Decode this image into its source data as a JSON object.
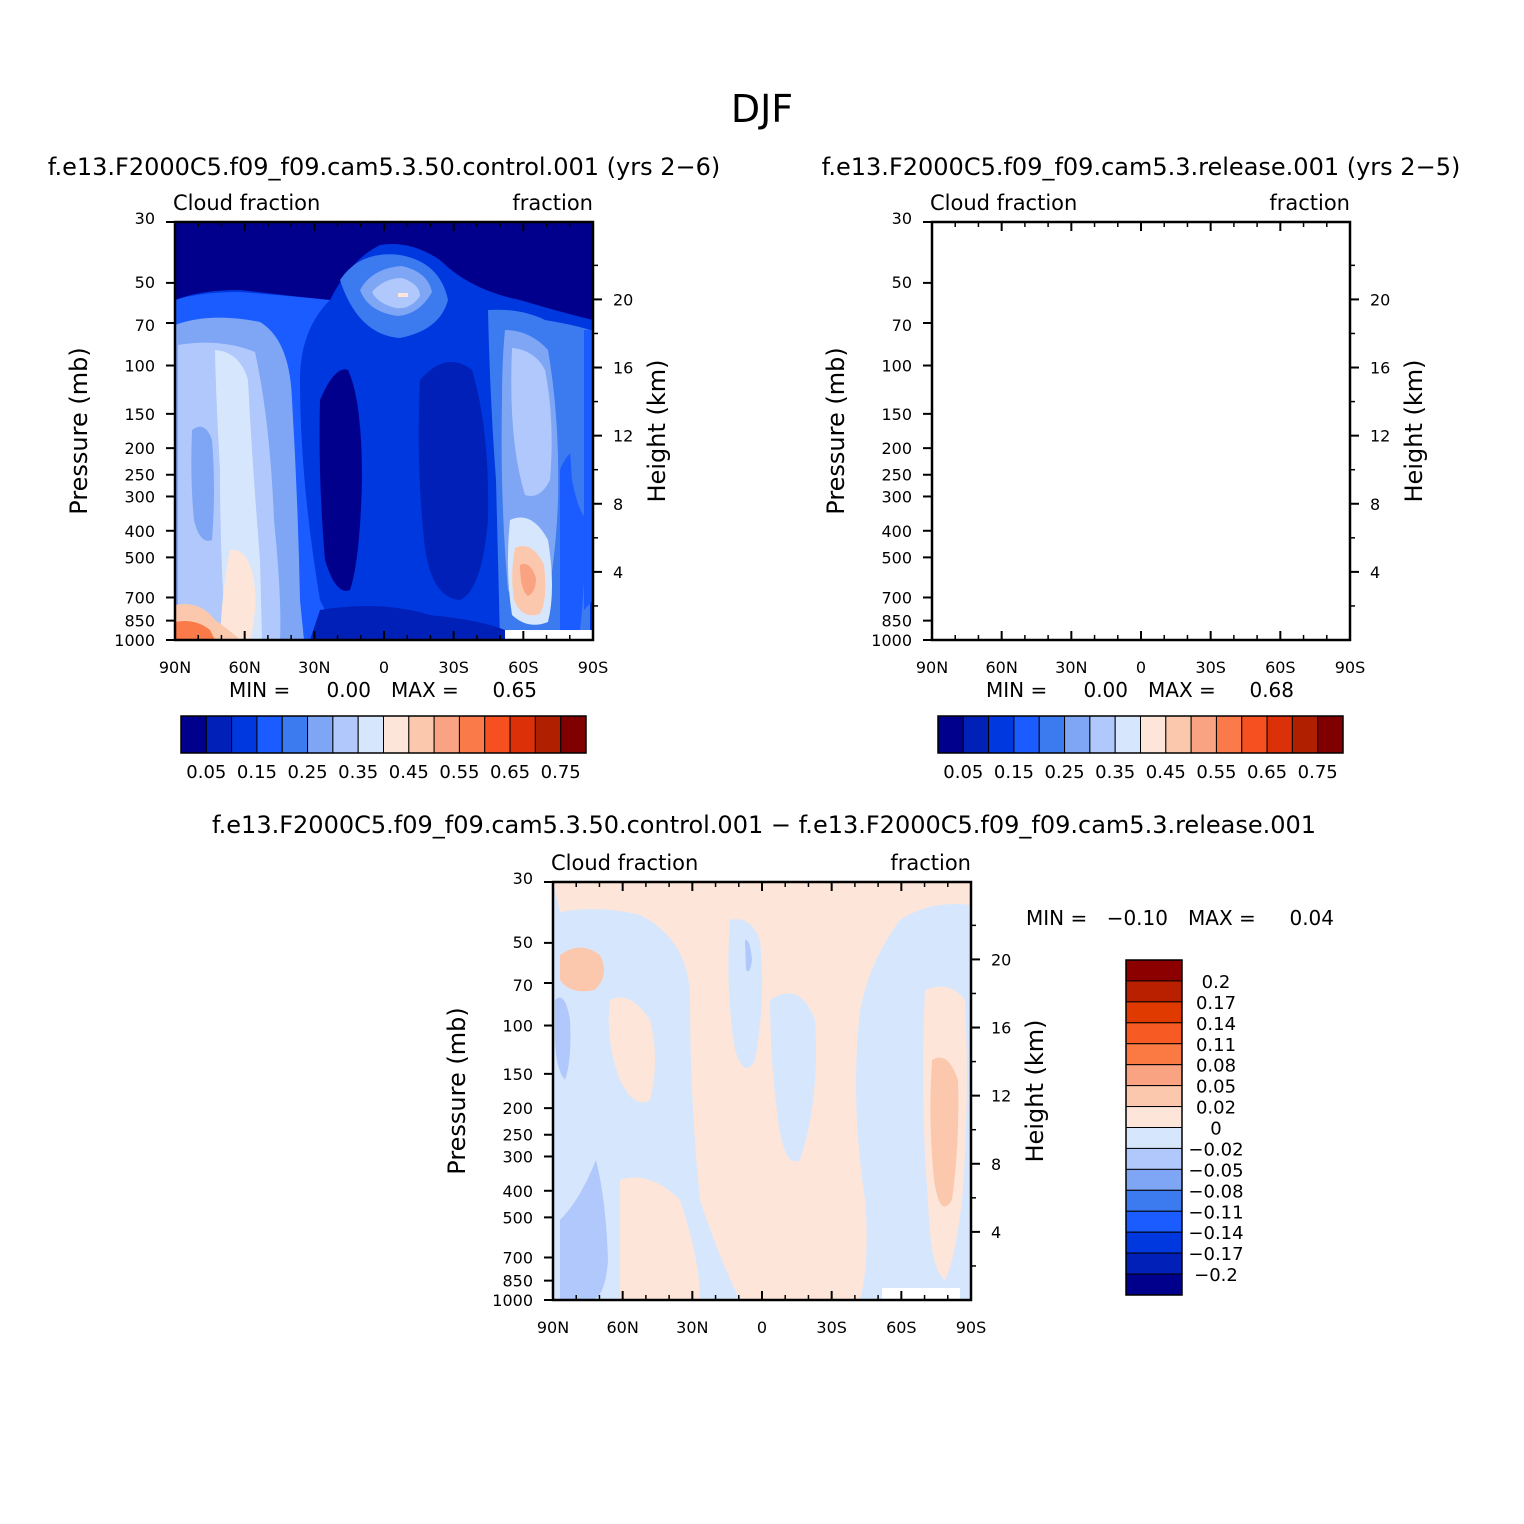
{
  "page_title": "DJF",
  "chart_data": [
    {
      "type": "heatmap",
      "subtype": "filled-contour zonal-mean cross-section",
      "title": "f.e13.F2000C5.f09_f09.cam5.3.50.control.001 (yrs 2−6)",
      "left_label": "Cloud fraction",
      "right_label": "fraction",
      "xlabel": "",
      "ylabel": "Pressure (mb)",
      "ylabel_right": "Height (km)",
      "x_ticks": [
        "90N",
        "60N",
        "30N",
        "0",
        "30S",
        "60S",
        "90S"
      ],
      "y_ticks": [
        "30",
        "50",
        "70",
        "100",
        "150",
        "200",
        "250",
        "300",
        "400",
        "500",
        "700",
        "850",
        "1000"
      ],
      "y_ticks_right": [
        "20",
        "16",
        "12",
        "8",
        "4"
      ],
      "stats": {
        "min_label": "MIN =",
        "min": "0.00",
        "max_label": "MAX =",
        "max": "0.65"
      },
      "colorbar": {
        "labels": [
          "0.05",
          "0.15",
          "0.25",
          "0.35",
          "0.45",
          "0.55",
          "0.65",
          "0.75"
        ],
        "colors": [
          "#00008c",
          "#0020b8",
          "#0038e0",
          "#1a5cff",
          "#3c7af0",
          "#7ea6f5",
          "#b0c8fb",
          "#d6e7fd",
          "#fde6d9",
          "#fbc8ae",
          "#f9a382",
          "#fa7a49",
          "#f75020",
          "#db3008",
          "#b02000",
          "#800000"
        ]
      }
    },
    {
      "type": "heatmap",
      "subtype": "filled-contour zonal-mean cross-section",
      "title": "f.e13.F2000C5.f09_f09.cam5.3.release.001 (yrs 2−5)",
      "left_label": "Cloud fraction",
      "right_label": "fraction",
      "xlabel": "",
      "ylabel": "Pressure (mb)",
      "ylabel_right": "Height (km)",
      "x_ticks": [
        "90N",
        "60N",
        "30N",
        "0",
        "30S",
        "60S",
        "90S"
      ],
      "y_ticks": [
        "30",
        "50",
        "70",
        "100",
        "150",
        "200",
        "250",
        "300",
        "400",
        "500",
        "700",
        "850",
        "1000"
      ],
      "y_ticks_right": [
        "20",
        "16",
        "12",
        "8",
        "4"
      ],
      "stats": {
        "min_label": "MIN =",
        "min": "0.00",
        "max_label": "MAX =",
        "max": "0.68"
      },
      "colorbar": {
        "labels": [
          "0.05",
          "0.15",
          "0.25",
          "0.35",
          "0.45",
          "0.55",
          "0.65",
          "0.75"
        ],
        "colors": [
          "#00008c",
          "#0020b8",
          "#0038e0",
          "#1a5cff",
          "#3c7af0",
          "#7ea6f5",
          "#b0c8fb",
          "#d6e7fd",
          "#fde6d9",
          "#fbc8ae",
          "#f9a382",
          "#fa7a49",
          "#f75020",
          "#db3008",
          "#b02000",
          "#800000"
        ]
      }
    },
    {
      "type": "heatmap",
      "subtype": "difference filled-contour cross-section",
      "title": "f.e13.F2000C5.f09_f09.cam5.3.50.control.001 − f.e13.F2000C5.f09_f09.cam5.3.release.001",
      "left_label": "Cloud fraction",
      "right_label": "fraction",
      "xlabel": "",
      "ylabel": "Pressure (mb)",
      "ylabel_right": "Height (km)",
      "x_ticks": [
        "90N",
        "60N",
        "30N",
        "0",
        "30S",
        "60S",
        "90S"
      ],
      "y_ticks": [
        "30",
        "50",
        "70",
        "100",
        "150",
        "200",
        "250",
        "300",
        "400",
        "500",
        "700",
        "850",
        "1000"
      ],
      "y_ticks_right": [
        "20",
        "16",
        "12",
        "8",
        "4"
      ],
      "stats": {
        "min_label": "MIN =",
        "min": "−0.10",
        "max_label": "MAX =",
        "max": "0.04"
      },
      "colorbar": {
        "labels": [
          "0.2",
          "0.17",
          "0.14",
          "0.11",
          "0.08",
          "0.05",
          "0.02",
          "0",
          "−0.02",
          "−0.05",
          "−0.08",
          "−0.11",
          "−0.14",
          "−0.17",
          "−0.2"
        ],
        "colors": [
          "#8c0000",
          "#b82000",
          "#e03a00",
          "#f75a22",
          "#fb7a44",
          "#f9a382",
          "#fbc8ae",
          "#fde6d9",
          "#d6e7fd",
          "#b0c8fb",
          "#7ea6f5",
          "#3c7af0",
          "#1a5cff",
          "#0038e0",
          "#0020b8",
          "#00008c"
        ]
      }
    }
  ]
}
